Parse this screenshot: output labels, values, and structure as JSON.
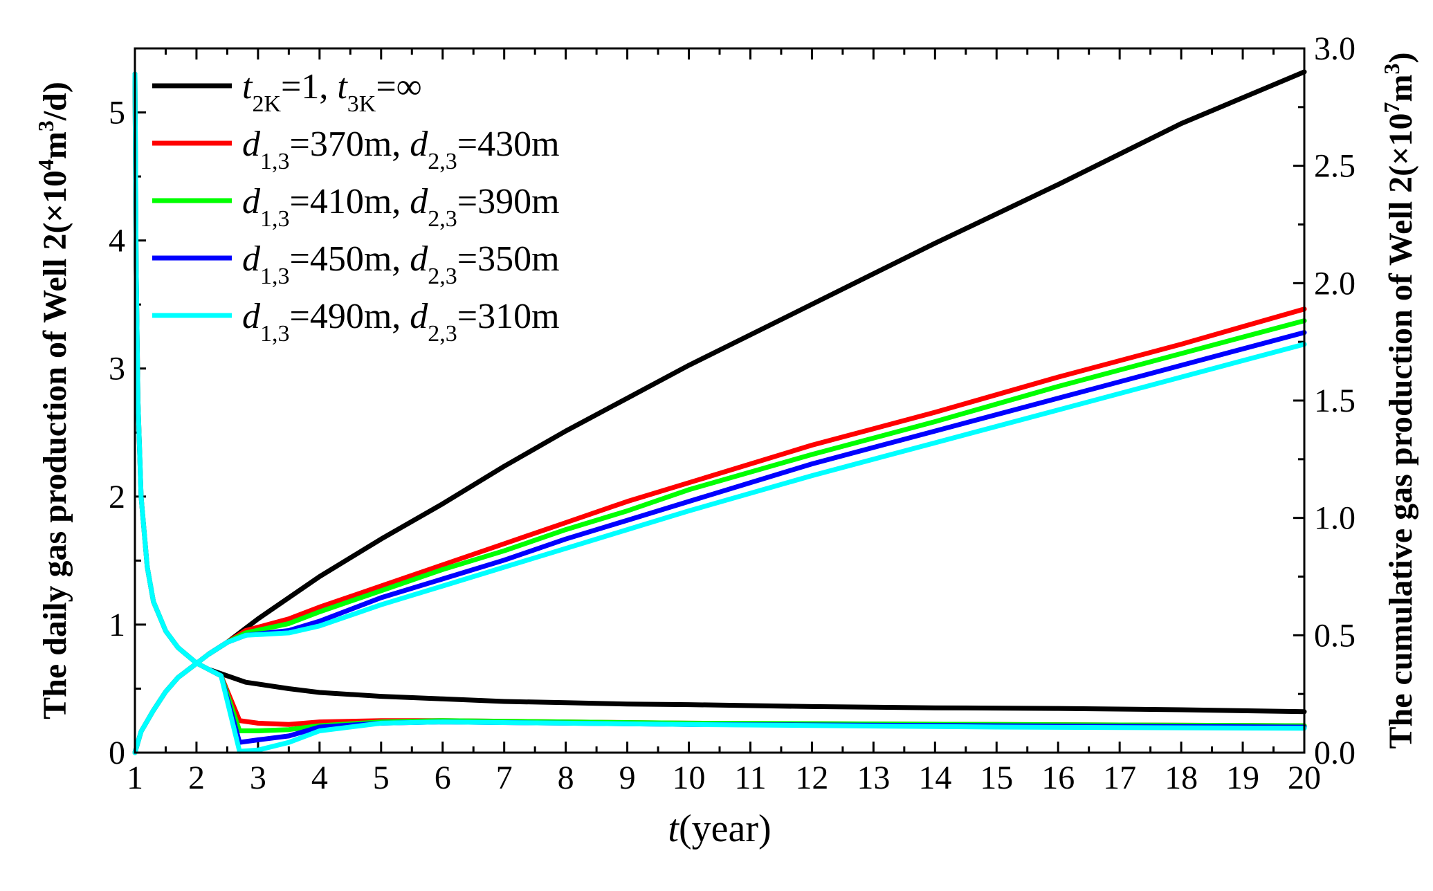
{
  "chart_data": {
    "type": "line",
    "title": "",
    "xlabel_italic": "t",
    "xlabel_rest": "(year)",
    "ylabel_left": "The daily gas production of Well 2(×10",
    "ylabel_left_exp": "4",
    "ylabel_left_tail": "m",
    "ylabel_left_exp2": "3",
    "ylabel_left_end": "/d)",
    "ylabel_right": "The cumulative gas production of Well 2(×10",
    "ylabel_right_exp": "7",
    "ylabel_right_tail": "m",
    "ylabel_right_exp2": "3",
    "ylabel_right_end": ")",
    "xlim": [
      1,
      20
    ],
    "ylim_left": [
      0,
      5.5
    ],
    "ylim_right": [
      0,
      3.0
    ],
    "x_ticks": [
      "1",
      "2",
      "3",
      "4",
      "5",
      "6",
      "7",
      "8",
      "9",
      "10",
      "11",
      "12",
      "13",
      "14",
      "15",
      "16",
      "17",
      "18",
      "19",
      "20"
    ],
    "y_left_ticks": [
      "0",
      "1",
      "2",
      "3",
      "4",
      "5"
    ],
    "y_right_ticks": [
      "0.0",
      "0.5",
      "1.0",
      "1.5",
      "2.0",
      "2.5",
      "3.0"
    ],
    "legend_location": "top-left",
    "legend": [
      {
        "color": "#000000",
        "parts": [
          [
            "t",
            "it"
          ],
          [
            "2K",
            "sub"
          ],
          [
            "=1, ",
            ""
          ],
          [
            "t",
            "it"
          ],
          [
            "3K",
            "sub"
          ],
          [
            "=∞",
            ""
          ]
        ]
      },
      {
        "color": "#ff0000",
        "parts": [
          [
            "d",
            "it"
          ],
          [
            "1,3",
            "sub"
          ],
          [
            "=370m, ",
            ""
          ],
          [
            "d",
            "it"
          ],
          [
            "2,3",
            "sub"
          ],
          [
            "=430m",
            ""
          ]
        ]
      },
      {
        "color": "#00ff00",
        "parts": [
          [
            "d",
            "it"
          ],
          [
            "1,3",
            "sub"
          ],
          [
            "=410m, ",
            ""
          ],
          [
            "d",
            "it"
          ],
          [
            "2,3",
            "sub"
          ],
          [
            "=390m",
            ""
          ]
        ]
      },
      {
        "color": "#0000ff",
        "parts": [
          [
            "d",
            "it"
          ],
          [
            "1,3",
            "sub"
          ],
          [
            "=450m, ",
            ""
          ],
          [
            "d",
            "it"
          ],
          [
            "2,3",
            "sub"
          ],
          [
            "=350m",
            ""
          ]
        ]
      },
      {
        "color": "#00ffff",
        "parts": [
          [
            "d",
            "it"
          ],
          [
            "1,3",
            "sub"
          ],
          [
            "=490m, ",
            ""
          ],
          [
            "d",
            "it"
          ],
          [
            "2,3",
            "sub"
          ],
          [
            "=310m",
            ""
          ]
        ]
      }
    ],
    "series": [
      {
        "name": "t2K=1, t3K=∞ daily",
        "color": "#000000",
        "axis": "left",
        "x": [
          1.0,
          1.02,
          1.05,
          1.1,
          1.2,
          1.3,
          1.5,
          1.7,
          2.0,
          2.2,
          2.5,
          2.8,
          3.5,
          4,
          5,
          6,
          7,
          8,
          9,
          10,
          12,
          14,
          16,
          18,
          20
        ],
        "y": [
          5.3,
          3.8,
          2.75,
          2.0,
          1.45,
          1.18,
          0.95,
          0.82,
          0.7,
          0.65,
          0.6,
          0.55,
          0.5,
          0.47,
          0.44,
          0.42,
          0.4,
          0.39,
          0.38,
          0.375,
          0.36,
          0.35,
          0.345,
          0.335,
          0.32
        ]
      },
      {
        "name": "t2K=1, t3K=∞ cumulative",
        "color": "#000000",
        "axis": "right",
        "x": [
          1.0,
          1.1,
          1.3,
          1.5,
          1.7,
          1.9,
          2.0,
          2.2,
          2.5,
          2.8,
          3.0,
          3.5,
          4,
          5,
          6,
          7,
          8,
          9,
          10,
          12,
          14,
          16,
          18,
          20
        ],
        "y": [
          0.0,
          0.09,
          0.18,
          0.26,
          0.32,
          0.36,
          0.38,
          0.42,
          0.47,
          0.53,
          0.57,
          0.66,
          0.75,
          0.91,
          1.06,
          1.22,
          1.37,
          1.51,
          1.65,
          1.91,
          2.17,
          2.42,
          2.68,
          2.9
        ]
      },
      {
        "name": "d13=370m, d23=430m daily",
        "color": "#ff0000",
        "axis": "left",
        "x": [
          2.2,
          2.4,
          2.7,
          3.0,
          3.5,
          4,
          5,
          6,
          8,
          10,
          15,
          20
        ],
        "y": [
          0.65,
          0.6,
          0.25,
          0.23,
          0.22,
          0.24,
          0.25,
          0.25,
          0.24,
          0.23,
          0.22,
          0.21
        ]
      },
      {
        "name": "d13=370m, d23=430m cumulative",
        "color": "#ff0000",
        "axis": "right",
        "x": [
          2.2,
          2.5,
          2.8,
          3.5,
          4,
          5,
          6,
          7,
          8,
          9,
          10,
          12,
          14,
          16,
          18,
          20
        ],
        "y": [
          0.42,
          0.47,
          0.52,
          0.57,
          0.62,
          0.71,
          0.8,
          0.89,
          0.98,
          1.07,
          1.15,
          1.31,
          1.45,
          1.6,
          1.74,
          1.89
        ]
      },
      {
        "name": "d13=410m, d23=390m daily",
        "color": "#00ff00",
        "axis": "left",
        "x": [
          2.2,
          2.4,
          2.7,
          3.0,
          3.5,
          4,
          5,
          6,
          8,
          10,
          15,
          20
        ],
        "y": [
          0.65,
          0.6,
          0.17,
          0.17,
          0.18,
          0.21,
          0.24,
          0.25,
          0.24,
          0.23,
          0.22,
          0.21
        ]
      },
      {
        "name": "d13=410m, d23=390m cumulative",
        "color": "#00ff00",
        "axis": "right",
        "x": [
          2.2,
          2.5,
          2.8,
          3.5,
          4,
          5,
          6,
          7,
          8,
          9,
          10,
          12,
          14,
          16,
          18,
          20
        ],
        "y": [
          0.42,
          0.47,
          0.51,
          0.55,
          0.6,
          0.69,
          0.78,
          0.86,
          0.95,
          1.03,
          1.12,
          1.27,
          1.41,
          1.56,
          1.7,
          1.84
        ]
      },
      {
        "name": "d13=450m, d23=350m daily",
        "color": "#0000ff",
        "axis": "left",
        "x": [
          2.2,
          2.4,
          2.7,
          3.0,
          3.5,
          4,
          5,
          6,
          8,
          10,
          15,
          20
        ],
        "y": [
          0.65,
          0.6,
          0.08,
          0.1,
          0.13,
          0.2,
          0.23,
          0.24,
          0.23,
          0.22,
          0.21,
          0.2
        ]
      },
      {
        "name": "d13=450m, d23=350m cumulative",
        "color": "#0000ff",
        "axis": "right",
        "x": [
          2.2,
          2.5,
          2.8,
          3.5,
          4,
          5,
          6,
          7,
          8,
          9,
          10,
          12,
          14,
          16,
          18,
          20
        ],
        "y": [
          0.42,
          0.47,
          0.5,
          0.52,
          0.56,
          0.66,
          0.74,
          0.82,
          0.91,
          0.99,
          1.07,
          1.23,
          1.37,
          1.51,
          1.65,
          1.79
        ]
      },
      {
        "name": "d13=490m, d23=310m daily",
        "color": "#00ffff",
        "axis": "left",
        "x": [
          2.2,
          2.4,
          2.7,
          3.0,
          3.5,
          4,
          5,
          6,
          8,
          10,
          15,
          20
        ],
        "y": [
          0.65,
          0.6,
          0.01,
          0.02,
          0.08,
          0.17,
          0.23,
          0.24,
          0.23,
          0.22,
          0.2,
          0.19
        ]
      },
      {
        "name": "d13=490m, d23=310m cumulative",
        "color": "#00ffff",
        "axis": "right",
        "x": [
          1.0,
          1.1,
          1.3,
          1.5,
          1.7,
          1.9,
          2.0,
          2.2,
          2.5,
          2.8,
          3.5,
          4,
          5,
          6,
          7,
          8,
          9,
          10,
          12,
          14,
          16,
          18,
          20
        ],
        "y": [
          0.0,
          0.09,
          0.18,
          0.26,
          0.32,
          0.36,
          0.38,
          0.42,
          0.47,
          0.5,
          0.51,
          0.54,
          0.63,
          0.71,
          0.79,
          0.87,
          0.95,
          1.03,
          1.18,
          1.32,
          1.46,
          1.6,
          1.74
        ]
      },
      {
        "name": "d13=490m, d23=310m daily (early)",
        "color": "#00ffff",
        "axis": "left",
        "x": [
          1.0,
          1.02,
          1.05,
          1.1,
          1.2,
          1.3,
          1.5,
          1.7,
          2.0,
          2.2
        ],
        "y": [
          5.3,
          3.8,
          2.75,
          2.0,
          1.45,
          1.18,
          0.95,
          0.82,
          0.7,
          0.65
        ]
      }
    ]
  }
}
